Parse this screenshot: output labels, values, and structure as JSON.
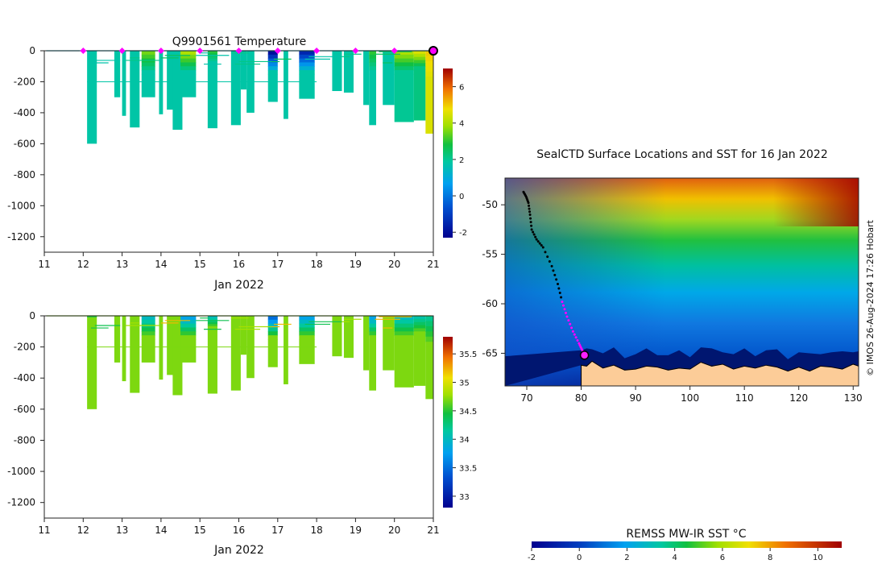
{
  "chart_data": [
    {
      "type": "heatmap",
      "title": "Q9901561  Temperature",
      "xlabel": "Jan 2022",
      "ylabel": "",
      "xlim": [
        11,
        21
      ],
      "ylim": [
        -1300,
        0
      ],
      "x_ticks": [
        "11",
        "12",
        "13",
        "14",
        "15",
        "16",
        "17",
        "18",
        "19",
        "20",
        "21"
      ],
      "y_ticks": [
        "0",
        "-200",
        "-400",
        "-600",
        "-800",
        "-1000",
        "-1200"
      ],
      "colorbar": {
        "range": [
          -2.3,
          7
        ],
        "ticks": [
          "-2",
          "0",
          "2",
          "4",
          "6"
        ]
      },
      "surfacing_markers": [
        12,
        13,
        14,
        15,
        16,
        17,
        18,
        19,
        20
      ],
      "current_marker": 21,
      "profiles": [
        {
          "x": 12.1,
          "w": 0.25,
          "depth": 600,
          "mix": 0,
          "surf": 1.2,
          "deep": 1.8
        },
        {
          "x": 12.8,
          "w": 0.15,
          "depth": 300,
          "mix": 0,
          "surf": 1.2,
          "deep": 1.8
        },
        {
          "x": 13.0,
          "w": 0.1,
          "depth": 420,
          "mix": 0,
          "surf": 1.2,
          "deep": 1.8
        },
        {
          "x": 13.2,
          "w": 0.25,
          "depth": 495,
          "mix": 0,
          "surf": 1.2,
          "deep": 1.8
        },
        {
          "x": 13.5,
          "w": 0.35,
          "depth": 300,
          "mix": 150,
          "surf": 3.5,
          "deep": 1.8
        },
        {
          "x": 13.95,
          "w": 0.1,
          "depth": 410,
          "mix": 0,
          "surf": 1.2,
          "deep": 1.8
        },
        {
          "x": 14.15,
          "w": 0.25,
          "depth": 380,
          "mix": 0,
          "surf": 1.2,
          "deep": 1.8
        },
        {
          "x": 14.3,
          "w": 0.25,
          "depth": 510,
          "mix": 0,
          "surf": 1.2,
          "deep": 1.8
        },
        {
          "x": 14.5,
          "w": 0.4,
          "depth": 300,
          "mix": 150,
          "surf": 4.0,
          "deep": 1.8
        },
        {
          "x": 15.2,
          "w": 0.25,
          "depth": 500,
          "mix": 80,
          "surf": 3.0,
          "deep": 1.8
        },
        {
          "x": 15.8,
          "w": 0.25,
          "depth": 480,
          "mix": 0,
          "surf": 1.2,
          "deep": 1.8
        },
        {
          "x": 16.05,
          "w": 0.15,
          "depth": 250,
          "mix": 0,
          "surf": 1.2,
          "deep": 1.8
        },
        {
          "x": 16.2,
          "w": 0.2,
          "depth": 400,
          "mix": 0,
          "surf": 1.2,
          "deep": 1.8
        },
        {
          "x": 16.75,
          "w": 0.25,
          "depth": 330,
          "mix": 150,
          "surf": -2.0,
          "deep": 1.8
        },
        {
          "x": 17.15,
          "w": 0.12,
          "depth": 440,
          "mix": 0,
          "surf": 1.2,
          "deep": 1.8
        },
        {
          "x": 17.55,
          "w": 0.4,
          "depth": 310,
          "mix": 150,
          "surf": -1.5,
          "deep": 1.8
        },
        {
          "x": 18.4,
          "w": 0.25,
          "depth": 260,
          "mix": 0,
          "surf": 1.2,
          "deep": 1.8
        },
        {
          "x": 18.7,
          "w": 0.25,
          "depth": 270,
          "mix": 0,
          "surf": 1.2,
          "deep": 1.8
        },
        {
          "x": 19.2,
          "w": 0.15,
          "depth": 350,
          "mix": 0,
          "surf": 1.2,
          "deep": 1.8
        },
        {
          "x": 19.35,
          "w": 0.18,
          "depth": 480,
          "mix": 150,
          "surf": 3.0,
          "deep": 1.8
        },
        {
          "x": 19.7,
          "w": 0.3,
          "depth": 350,
          "mix": 0,
          "surf": 1.2,
          "deep": 1.8
        },
        {
          "x": 20.0,
          "w": 0.5,
          "depth": 460,
          "mix": 150,
          "surf": 4.0,
          "deep": 2.0
        },
        {
          "x": 20.5,
          "w": 0.3,
          "depth": 450,
          "mix": 120,
          "surf": 4.5,
          "deep": 2.2
        },
        {
          "x": 20.8,
          "w": 0.2,
          "depth": 535,
          "mix": 200,
          "surf": 5.0,
          "deep": 4.5
        }
      ]
    },
    {
      "type": "heatmap",
      "title": "",
      "xlabel": "Jan 2022",
      "ylabel": "",
      "xlim": [
        11,
        21
      ],
      "ylim": [
        -1300,
        0
      ],
      "x_ticks": [
        "11",
        "12",
        "13",
        "14",
        "15",
        "16",
        "17",
        "18",
        "19",
        "20",
        "21"
      ],
      "y_ticks": [
        "0",
        "-200",
        "-400",
        "-600",
        "-800",
        "-1000",
        "-1200"
      ],
      "colorbar": {
        "range": [
          32.8,
          35.8
        ],
        "ticks": [
          "33",
          "33.5",
          "34",
          "34.5",
          "35",
          "35.5"
        ]
      },
      "profiles": [
        {
          "x": 12.1,
          "w": 0.25,
          "depth": 600,
          "mix": 0,
          "surf": 34.7,
          "deep": 34.7
        },
        {
          "x": 12.8,
          "w": 0.15,
          "depth": 300,
          "mix": 0,
          "surf": 34.7,
          "deep": 34.7
        },
        {
          "x": 13.0,
          "w": 0.1,
          "depth": 420,
          "mix": 0,
          "surf": 34.7,
          "deep": 34.7
        },
        {
          "x": 13.2,
          "w": 0.25,
          "depth": 495,
          "mix": 0,
          "surf": 34.7,
          "deep": 34.7
        },
        {
          "x": 13.5,
          "w": 0.35,
          "depth": 300,
          "mix": 150,
          "surf": 34.0,
          "deep": 34.7
        },
        {
          "x": 13.95,
          "w": 0.1,
          "depth": 410,
          "mix": 0,
          "surf": 34.7,
          "deep": 34.7
        },
        {
          "x": 14.15,
          "w": 0.25,
          "depth": 380,
          "mix": 0,
          "surf": 34.7,
          "deep": 34.7
        },
        {
          "x": 14.3,
          "w": 0.25,
          "depth": 510,
          "mix": 0,
          "surf": 34.7,
          "deep": 34.7
        },
        {
          "x": 14.5,
          "w": 0.4,
          "depth": 300,
          "mix": 150,
          "surf": 33.8,
          "deep": 34.7
        },
        {
          "x": 15.2,
          "w": 0.25,
          "depth": 500,
          "mix": 80,
          "surf": 34.0,
          "deep": 34.7
        },
        {
          "x": 15.8,
          "w": 0.25,
          "depth": 480,
          "mix": 0,
          "surf": 34.7,
          "deep": 34.7
        },
        {
          "x": 16.05,
          "w": 0.15,
          "depth": 250,
          "mix": 0,
          "surf": 34.7,
          "deep": 34.7
        },
        {
          "x": 16.2,
          "w": 0.2,
          "depth": 400,
          "mix": 0,
          "surf": 34.7,
          "deep": 34.7
        },
        {
          "x": 16.75,
          "w": 0.25,
          "depth": 330,
          "mix": 150,
          "surf": 33.5,
          "deep": 34.7
        },
        {
          "x": 17.15,
          "w": 0.12,
          "depth": 440,
          "mix": 0,
          "surf": 34.7,
          "deep": 34.7
        },
        {
          "x": 17.55,
          "w": 0.4,
          "depth": 310,
          "mix": 150,
          "surf": 33.8,
          "deep": 34.7
        },
        {
          "x": 18.4,
          "w": 0.25,
          "depth": 260,
          "mix": 0,
          "surf": 34.7,
          "deep": 34.7
        },
        {
          "x": 18.7,
          "w": 0.25,
          "depth": 270,
          "mix": 0,
          "surf": 34.7,
          "deep": 34.7
        },
        {
          "x": 19.2,
          "w": 0.15,
          "depth": 350,
          "mix": 0,
          "surf": 34.7,
          "deep": 34.7
        },
        {
          "x": 19.35,
          "w": 0.18,
          "depth": 480,
          "mix": 150,
          "surf": 33.8,
          "deep": 34.7
        },
        {
          "x": 19.7,
          "w": 0.3,
          "depth": 350,
          "mix": 0,
          "surf": 34.7,
          "deep": 34.7
        },
        {
          "x": 20.0,
          "w": 0.5,
          "depth": 460,
          "mix": 150,
          "surf": 34.0,
          "deep": 34.7
        },
        {
          "x": 20.5,
          "w": 0.3,
          "depth": 450,
          "mix": 120,
          "surf": 34.1,
          "deep": 34.7
        },
        {
          "x": 20.8,
          "w": 0.2,
          "depth": 535,
          "mix": 200,
          "surf": 34.2,
          "deep": 34.7
        }
      ]
    },
    {
      "type": "heatmap",
      "title": "SealCTD Surface Locations and SST for 16 Jan 2022",
      "xlabel": "",
      "ylabel": "",
      "xlim": [
        66,
        131
      ],
      "ylim": [
        -68.3,
        -47.3
      ],
      "x_ticks": [
        "70",
        "80",
        "90",
        "100",
        "110",
        "120",
        "130"
      ],
      "y_ticks": [
        "-50",
        "-55",
        "-60",
        "-65"
      ],
      "colorbar": {
        "label": "REMSS MW-IR SST °C",
        "range": [
          -2,
          11
        ],
        "ticks": [
          "-2",
          "0",
          "2",
          "4",
          "6",
          "8",
          "10"
        ]
      },
      "credit": "© IMOS 26-Aug-2024 17:26 Hobart",
      "track": [
        [
          69.4,
          -48.7
        ],
        [
          69.9,
          -49.2
        ],
        [
          70.3,
          -49.8
        ],
        [
          70.6,
          -51.0
        ],
        [
          70.9,
          -52.5
        ],
        [
          71.8,
          -53.5
        ],
        [
          73.0,
          -54.3
        ],
        [
          74.6,
          -56.2
        ],
        [
          75.7,
          -58.0
        ],
        [
          76.5,
          -59.8
        ],
        [
          77.4,
          -61.3
        ],
        [
          78.5,
          -62.8
        ],
        [
          79.6,
          -64.0
        ],
        [
          80.2,
          -64.7
        ],
        [
          80.6,
          -65.2
        ]
      ],
      "highlighted_track_start_index": 9,
      "current_position": [
        80.6,
        -65.2
      ],
      "coastline": [
        [
          80,
          -68.3
        ],
        [
          80,
          -66.2
        ],
        [
          81,
          -66.3
        ],
        [
          82,
          -65.8
        ],
        [
          84,
          -66.5
        ],
        [
          86,
          -66.2
        ],
        [
          88,
          -66.7
        ],
        [
          90,
          -66.6
        ],
        [
          92,
          -66.3
        ],
        [
          94,
          -66.4
        ],
        [
          96,
          -66.7
        ],
        [
          98,
          -66.5
        ],
        [
          100,
          -66.6
        ],
        [
          102,
          -65.9
        ],
        [
          104,
          -66.3
        ],
        [
          106,
          -66.1
        ],
        [
          108,
          -66.6
        ],
        [
          110,
          -66.3
        ],
        [
          112,
          -66.5
        ],
        [
          114,
          -66.2
        ],
        [
          116,
          -66.4
        ],
        [
          118,
          -66.8
        ],
        [
          120,
          -66.4
        ],
        [
          122,
          -66.8
        ],
        [
          124,
          -66.3
        ],
        [
          126,
          -66.4
        ],
        [
          128,
          -66.6
        ],
        [
          130,
          -66.1
        ],
        [
          131,
          -66.3
        ],
        [
          131,
          -68.3
        ]
      ]
    }
  ]
}
